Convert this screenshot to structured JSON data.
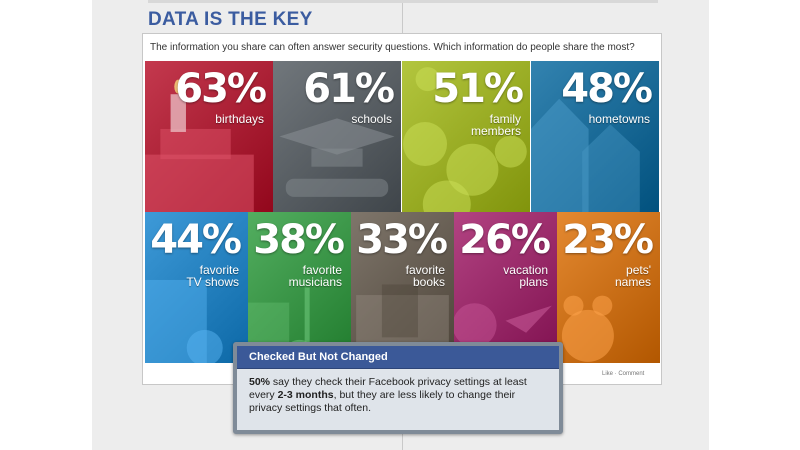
{
  "headline": "DATA IS THE KEY",
  "subtitle": "The information you share can often answer security questions. Which information do people share the most?",
  "chart_data": {
    "type": "table",
    "title": "DATA IS THE KEY",
    "metric": "percent of people who share",
    "categories": [
      "birthdays",
      "schools",
      "family members",
      "hometowns",
      "favorite TV shows",
      "favorite musicians",
      "favorite books",
      "vacation plans",
      "pets' names"
    ],
    "values": [
      63,
      61,
      51,
      48,
      44,
      38,
      33,
      26,
      23
    ]
  },
  "tiles": [
    {
      "pct": "63%",
      "lines": [
        "birthdays"
      ],
      "color": "#b0253a",
      "icon": "birthday-cake-icon"
    },
    {
      "pct": "61%",
      "lines": [
        "schools"
      ],
      "color": "#5d6368",
      "icon": "graduation-cap-icon"
    },
    {
      "pct": "51%",
      "lines": [
        "family",
        "members"
      ],
      "color": "#9fb22a",
      "icon": "smiley-faces-icon"
    },
    {
      "pct": "48%",
      "lines": [
        "hometowns"
      ],
      "color": "#1f6f9c",
      "icon": "houses-icon"
    },
    {
      "pct": "44%",
      "lines": [
        "favorite",
        "TV shows"
      ],
      "color": "#2a86c4",
      "icon": "film-strip-icon"
    },
    {
      "pct": "38%",
      "lines": [
        "favorite",
        "musicians"
      ],
      "color": "#3f9a4c",
      "icon": "music-note-icon"
    },
    {
      "pct": "33%",
      "lines": [
        "favorite",
        "books"
      ],
      "color": "#6b6257",
      "icon": "book-icon"
    },
    {
      "pct": "26%",
      "lines": [
        "vacation",
        "plans"
      ],
      "color": "#9e2f6e",
      "icon": "airplane-globe-icon"
    },
    {
      "pct": "23%",
      "lines": [
        "pets'",
        "names"
      ],
      "color": "#d0751d",
      "icon": "pet-face-icon"
    }
  ],
  "likebar": "Like · Comment",
  "callout": {
    "title": "Checked But Not Changed",
    "b1": "50%",
    "t1": " say they check their Facebook privacy settings at least every ",
    "b2": "2-3 months",
    "t2": ", but they are less likely to change their privacy settings that often."
  }
}
